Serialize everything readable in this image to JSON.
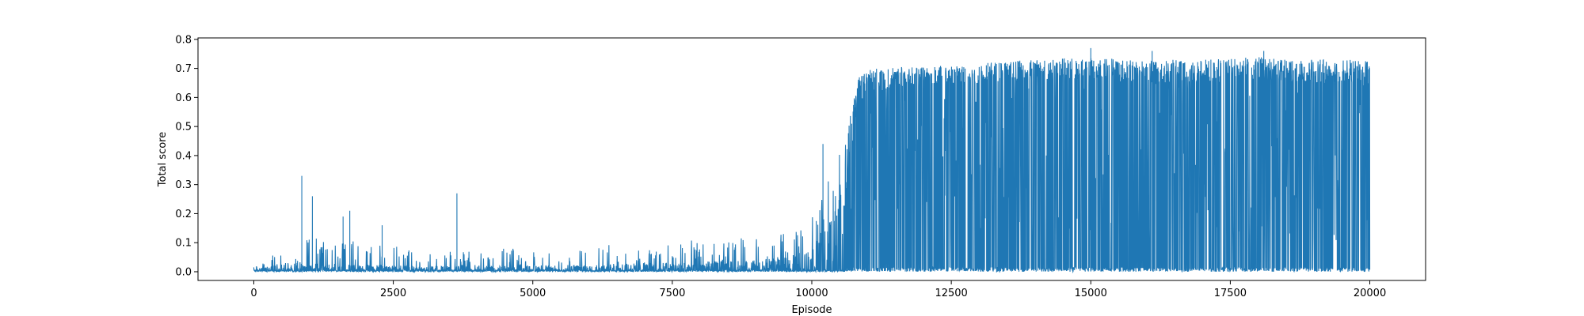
{
  "chart_data": {
    "type": "line",
    "title": "",
    "xlabel": "Episode",
    "ylabel": "Total score",
    "xlim": [
      -1000,
      21000
    ],
    "ylim": [
      -0.03,
      0.805
    ],
    "xticks": [
      0,
      2500,
      5000,
      7500,
      10000,
      12500,
      15000,
      17500,
      20000
    ],
    "yticks": [
      0.0,
      0.1,
      0.2,
      0.3,
      0.4,
      0.5,
      0.6,
      0.7,
      0.8
    ],
    "xtick_labels": [
      "0",
      "2500",
      "5000",
      "7500",
      "10000",
      "12500",
      "15000",
      "17500",
      "20000"
    ],
    "ytick_labels": [
      "0.0",
      "0.1",
      "0.2",
      "0.3",
      "0.4",
      "0.5",
      "0.6",
      "0.7",
      "0.8"
    ],
    "grid": false,
    "legend": "none",
    "series": [
      {
        "name": "Total score",
        "color": "#1f77b4",
        "episodes": 20000,
        "envelope": {
          "x": [
            0,
            500,
            1000,
            2000,
            3000,
            4000,
            5000,
            6000,
            7000,
            8000,
            9000,
            9500,
            9800,
            10000,
            10200,
            10400,
            10600,
            10700,
            10800,
            11000,
            12000,
            13000,
            14000,
            15000,
            16000,
            17000,
            18000,
            19000,
            20000
          ],
          "max": [
            0.02,
            0.08,
            0.12,
            0.1,
            0.08,
            0.08,
            0.08,
            0.09,
            0.1,
            0.11,
            0.12,
            0.13,
            0.16,
            0.22,
            0.28,
            0.36,
            0.45,
            0.55,
            0.66,
            0.7,
            0.71,
            0.72,
            0.73,
            0.74,
            0.73,
            0.73,
            0.74,
            0.73,
            0.73
          ],
          "typical": [
            0.01,
            0.03,
            0.03,
            0.025,
            0.02,
            0.02,
            0.02,
            0.025,
            0.03,
            0.035,
            0.04,
            0.05,
            0.07,
            0.09,
            0.15,
            0.22,
            0.3,
            0.4,
            0.55,
            0.62,
            0.64,
            0.65,
            0.66,
            0.66,
            0.65,
            0.65,
            0.66,
            0.65,
            0.65
          ]
        },
        "spikes": [
          {
            "x": 860,
            "y": 0.33
          },
          {
            "x": 1050,
            "y": 0.26
          },
          {
            "x": 1600,
            "y": 0.19
          },
          {
            "x": 1720,
            "y": 0.21
          },
          {
            "x": 2300,
            "y": 0.16
          },
          {
            "x": 3640,
            "y": 0.27
          },
          {
            "x": 10200,
            "y": 0.44
          },
          {
            "x": 15000,
            "y": 0.77
          },
          {
            "x": 16100,
            "y": 0.76
          },
          {
            "x": 18100,
            "y": 0.76
          }
        ]
      }
    ]
  }
}
